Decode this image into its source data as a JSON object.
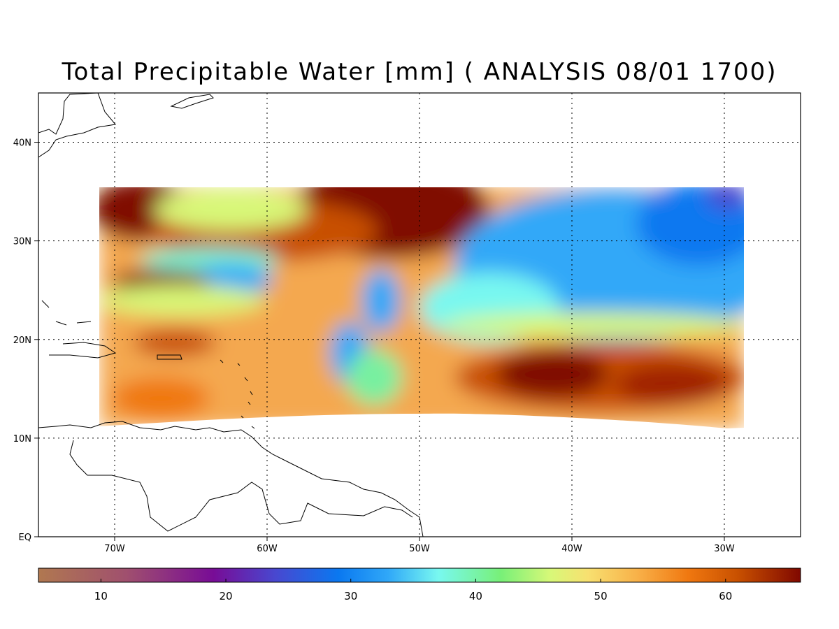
{
  "title": "Total Precipitable Water [mm]  ( ANALYSIS 08/01 1700)",
  "map": {
    "lon_range": [
      -75,
      -25
    ],
    "lat_range": [
      0,
      45
    ],
    "grid": true,
    "lon_ticks": [
      {
        "value": -70,
        "label": "70W"
      },
      {
        "value": -60,
        "label": "60W"
      },
      {
        "value": -50,
        "label": "50W"
      },
      {
        "value": -40,
        "label": "40W"
      },
      {
        "value": -30,
        "label": "30W"
      }
    ],
    "lat_ticks": [
      {
        "value": 0,
        "label": "EQ"
      },
      {
        "value": 10,
        "label": "10N"
      },
      {
        "value": 20,
        "label": "20N"
      },
      {
        "value": 30,
        "label": "30N"
      },
      {
        "value": 40,
        "label": "40N"
      }
    ],
    "data_domain": {
      "lon": [
        -71,
        -29
      ],
      "lat_top": 35.5
    }
  },
  "colorbar": {
    "range": [
      5,
      66
    ],
    "ticks": [
      {
        "value": 10,
        "label": "10"
      },
      {
        "value": 20,
        "label": "20"
      },
      {
        "value": 30,
        "label": "30"
      },
      {
        "value": 40,
        "label": "40"
      },
      {
        "value": 50,
        "label": "50"
      },
      {
        "value": 60,
        "label": "60"
      }
    ],
    "stops": [
      {
        "value": 5,
        "color": "#b07850"
      },
      {
        "value": 12,
        "color": "#a0506e"
      },
      {
        "value": 19,
        "color": "#780c96"
      },
      {
        "value": 24,
        "color": "#4848d0"
      },
      {
        "value": 29,
        "color": "#0a78f0"
      },
      {
        "value": 33,
        "color": "#30a8f8"
      },
      {
        "value": 37,
        "color": "#78f8f0"
      },
      {
        "value": 42,
        "color": "#78f078"
      },
      {
        "value": 46,
        "color": "#d8f878"
      },
      {
        "value": 49,
        "color": "#f8e070"
      },
      {
        "value": 53,
        "color": "#f8b048"
      },
      {
        "value": 57,
        "color": "#f07810"
      },
      {
        "value": 61,
        "color": "#c85000"
      },
      {
        "value": 66,
        "color": "#800800"
      }
    ]
  }
}
